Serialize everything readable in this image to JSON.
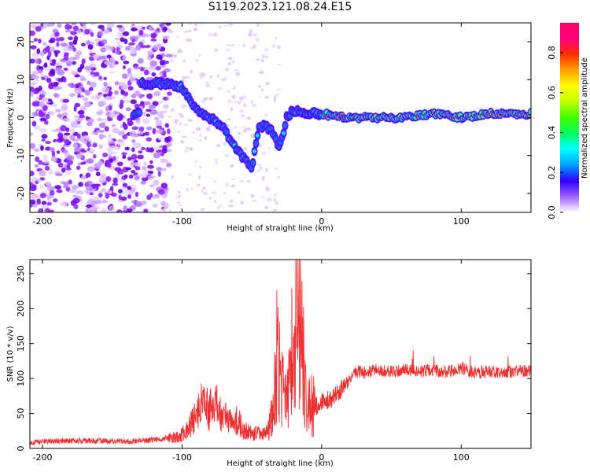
{
  "title": "S119.2023.121.08.24.E15",
  "chart_data": [
    {
      "type": "heatmap",
      "xlabel": "Height of straight line (km)",
      "ylabel": "Frequency (Hz)",
      "xlim": [
        -209,
        150
      ],
      "ylim": [
        -25,
        25
      ],
      "xticks": [
        -200,
        -100,
        0,
        100
      ],
      "yticks": [
        -20,
        -10,
        0,
        10,
        20
      ],
      "colorbar": {
        "label": "Normalized spectral amplitude",
        "range": [
          0.0,
          0.95
        ],
        "ticks": [
          0.0,
          0.2,
          0.4,
          0.6,
          0.8
        ],
        "colors": [
          "#ffffff",
          "#a060ff",
          "#3000ff",
          "#00a0ff",
          "#00ffff",
          "#00ff60",
          "#40ff00",
          "#c0ff00",
          "#ffff00",
          "#ffa000",
          "#ff3000",
          "#ff0080",
          "#ff0060"
        ]
      },
      "ridge": {
        "x": [
          -130,
          -115,
          -100,
          -90,
          -80,
          -70,
          -60,
          -50,
          -45,
          -40,
          -35,
          -30,
          -25,
          -20,
          -10,
          0,
          20,
          40,
          60,
          80,
          100,
          120,
          150
        ],
        "y": [
          9,
          9,
          8,
          2,
          0,
          -3,
          -9,
          -13,
          -3,
          -2,
          -4,
          -8,
          0,
          2,
          1,
          1,
          0,
          0,
          0,
          1,
          0,
          1,
          1
        ]
      }
    },
    {
      "type": "line",
      "xlabel": "Height of straight line (km)",
      "ylabel": "SNR (10 * v/v)",
      "xlim": [
        -209,
        150
      ],
      "ylim": [
        0,
        270
      ],
      "xticks": [
        -200,
        -100,
        0,
        100
      ],
      "yticks": [
        0,
        50,
        100,
        150,
        200,
        250
      ],
      "color": "#f03030",
      "series": [
        {
          "x": [
            -209,
            -200,
            -180,
            -160,
            -140,
            -120,
            -110,
            -100,
            -95,
            -90,
            -85,
            -80,
            -75,
            -70,
            -65,
            -60,
            -55,
            -50,
            -45,
            -40,
            -35,
            -32,
            -30,
            -28,
            -25,
            -22,
            -20,
            -18,
            -15,
            -12,
            -10,
            -5,
            0,
            5,
            10,
            15,
            20,
            25,
            30,
            40,
            50,
            60,
            70,
            80,
            90,
            100,
            110,
            120,
            130,
            140,
            150
          ],
          "values": [
            8,
            10,
            11,
            11,
            10,
            12,
            15,
            20,
            30,
            45,
            65,
            55,
            60,
            45,
            35,
            40,
            25,
            20,
            22,
            20,
            50,
            150,
            120,
            80,
            60,
            140,
            120,
            200,
            170,
            90,
            70,
            60,
            65,
            70,
            75,
            85,
            100,
            110,
            108,
            112,
            110,
            113,
            110,
            112,
            110,
            115,
            108,
            110,
            108,
            112,
            110
          ]
        }
      ]
    }
  ]
}
